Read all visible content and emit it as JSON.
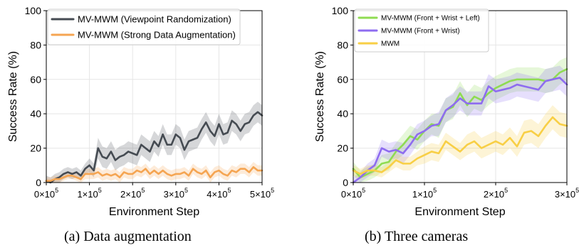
{
  "colors": {
    "dark_gray": "#454b52",
    "orange": "#f5a552",
    "green": "#8fdc52",
    "purple": "#8e6cf0",
    "yellow": "#f8cf45"
  },
  "captions": {
    "a": "(a) Data augmentation",
    "b": "(b) Three cameras"
  },
  "chart_data": [
    {
      "type": "line",
      "title": "",
      "xlabel": "Environment Step",
      "ylabel": "Success Rate (%)",
      "xlim": [
        0,
        500000
      ],
      "ylim": [
        0,
        100
      ],
      "xticks": [
        0,
        100000,
        200000,
        300000,
        400000,
        500000
      ],
      "xtick_labels": [
        {
          "base": "0×10",
          "exp": "5"
        },
        {
          "base": "1×10",
          "exp": "5"
        },
        {
          "base": "2×10",
          "exp": "5"
        },
        {
          "base": "3×10",
          "exp": "5"
        },
        {
          "base": "4×10",
          "exp": "5"
        },
        {
          "base": "5×10",
          "exp": "5"
        }
      ],
      "yticks": [
        "0",
        "20",
        "40",
        "60",
        "80",
        "100"
      ],
      "grid": true,
      "legend": "top-left",
      "series": [
        {
          "name": "MV-MWM (Viewpoint Randomization)",
          "color": "#454b52",
          "x": [
            0,
            10000,
            20000,
            30000,
            40000,
            50000,
            60000,
            70000,
            80000,
            90000,
            100000,
            110000,
            120000,
            130000,
            140000,
            150000,
            160000,
            170000,
            180000,
            190000,
            200000,
            210000,
            220000,
            230000,
            240000,
            250000,
            260000,
            270000,
            280000,
            290000,
            300000,
            310000,
            320000,
            330000,
            340000,
            350000,
            360000,
            370000,
            380000,
            390000,
            400000,
            410000,
            420000,
            430000,
            440000,
            450000,
            460000,
            470000,
            480000,
            490000,
            500000
          ],
          "y": [
            1,
            0,
            2,
            3,
            5,
            6,
            5,
            6,
            4,
            8,
            10,
            7,
            20,
            15,
            14,
            18,
            13,
            15,
            16,
            18,
            17,
            16,
            22,
            20,
            18,
            24,
            21,
            28,
            22,
            22,
            28,
            26,
            19,
            24,
            25,
            26,
            31,
            35,
            30,
            27,
            34,
            28,
            29,
            36,
            34,
            30,
            34,
            35,
            39,
            41,
            39
          ],
          "band": [
            3,
            3,
            3,
            3,
            3,
            3,
            3,
            3,
            3,
            3,
            4,
            4,
            6,
            6,
            6,
            6,
            6,
            6,
            6,
            6,
            6,
            6,
            6,
            6,
            6,
            6,
            6,
            6,
            6,
            6,
            6,
            6,
            6,
            6,
            6,
            6,
            6,
            6,
            6,
            6,
            6,
            6,
            6,
            6,
            6,
            6,
            6,
            6,
            6,
            6,
            6
          ]
        },
        {
          "name": "MV-MWM (Strong Data Augmentation)",
          "color": "#f5a552",
          "x": [
            0,
            10000,
            20000,
            30000,
            40000,
            50000,
            60000,
            70000,
            80000,
            90000,
            100000,
            110000,
            120000,
            130000,
            140000,
            150000,
            160000,
            170000,
            180000,
            190000,
            200000,
            210000,
            220000,
            230000,
            240000,
            250000,
            260000,
            270000,
            280000,
            290000,
            300000,
            310000,
            320000,
            330000,
            340000,
            350000,
            360000,
            370000,
            380000,
            390000,
            400000,
            410000,
            420000,
            430000,
            440000,
            450000,
            460000,
            470000,
            480000,
            490000,
            500000
          ],
          "y": [
            1,
            1,
            2,
            2,
            3,
            4,
            4,
            3,
            2,
            5,
            5,
            5,
            6,
            4,
            5,
            4,
            5,
            3,
            6,
            5,
            5,
            7,
            6,
            8,
            5,
            7,
            5,
            7,
            5,
            4,
            5,
            5,
            6,
            4,
            8,
            6,
            5,
            7,
            3,
            6,
            7,
            5,
            4,
            7,
            6,
            8,
            8,
            6,
            9,
            7,
            7
          ],
          "band": [
            2,
            2,
            2,
            2,
            2,
            2,
            2,
            2,
            3,
            3,
            3,
            3,
            3,
            3,
            3,
            3,
            3,
            3,
            3,
            3,
            3,
            3,
            3,
            3,
            3,
            3,
            3,
            3,
            3,
            3,
            3,
            3,
            3,
            3,
            3,
            3,
            3,
            3,
            3,
            3,
            3,
            3,
            3,
            3,
            3,
            3,
            3,
            3,
            3,
            3,
            3
          ]
        }
      ]
    },
    {
      "type": "line",
      "title": "",
      "xlabel": "Environment Step",
      "ylabel": "Success Rate (%)",
      "xlim": [
        0,
        300000
      ],
      "ylim": [
        0,
        100
      ],
      "xticks": [
        0,
        100000,
        200000,
        300000
      ],
      "xtick_labels": [
        {
          "base": "0×10",
          "exp": "5"
        },
        {
          "base": "1×10",
          "exp": "5"
        },
        {
          "base": "2×10",
          "exp": "5"
        },
        {
          "base": "3×10",
          "exp": "5"
        }
      ],
      "yticks": [
        "0",
        "20",
        "40",
        "60",
        "80",
        "100"
      ],
      "grid": true,
      "legend": "top-left",
      "series": [
        {
          "name": "MV-MWM (Front + Wrist + Left)",
          "color": "#8fdc52",
          "x": [
            0,
            10000,
            20000,
            30000,
            40000,
            50000,
            60000,
            70000,
            80000,
            90000,
            100000,
            110000,
            120000,
            130000,
            140000,
            150000,
            160000,
            170000,
            180000,
            190000,
            200000,
            210000,
            220000,
            230000,
            240000,
            250000,
            260000,
            270000,
            280000,
            290000,
            300000
          ],
          "y": [
            8,
            3,
            5,
            7,
            11,
            12,
            18,
            22,
            27,
            25,
            30,
            34,
            33,
            42,
            44,
            52,
            45,
            50,
            48,
            52,
            55,
            57,
            59,
            60,
            60,
            60,
            60,
            59,
            60,
            64,
            66
          ],
          "band": [
            4,
            4,
            4,
            4,
            5,
            5,
            5,
            6,
            6,
            6,
            6,
            6,
            7,
            7,
            7,
            7,
            7,
            7,
            7,
            7,
            7,
            7,
            7,
            7,
            7,
            7,
            7,
            7,
            7,
            7,
            7
          ]
        },
        {
          "name": "MV-MWM (Front + Wrist)",
          "color": "#8e6cf0",
          "x": [
            0,
            10000,
            20000,
            30000,
            40000,
            50000,
            60000,
            70000,
            80000,
            90000,
            100000,
            110000,
            120000,
            130000,
            140000,
            150000,
            160000,
            170000,
            180000,
            190000,
            200000,
            210000,
            220000,
            230000,
            240000,
            250000,
            260000,
            270000,
            280000,
            290000,
            300000
          ],
          "y": [
            0,
            3,
            7,
            10,
            20,
            18,
            19,
            17,
            22,
            28,
            30,
            33,
            34,
            42,
            45,
            49,
            46,
            46,
            46,
            56,
            53,
            54,
            55,
            57,
            56,
            55,
            54,
            59,
            60,
            61,
            57
          ],
          "band": [
            3,
            3,
            4,
            4,
            5,
            5,
            5,
            6,
            6,
            6,
            6,
            6,
            7,
            7,
            7,
            7,
            7,
            7,
            7,
            7,
            7,
            7,
            7,
            7,
            7,
            7,
            7,
            7,
            7,
            7,
            7
          ]
        },
        {
          "name": "MWM",
          "color": "#f8cf45",
          "x": [
            0,
            10000,
            20000,
            30000,
            40000,
            50000,
            60000,
            70000,
            80000,
            90000,
            100000,
            110000,
            120000,
            130000,
            140000,
            150000,
            160000,
            170000,
            180000,
            190000,
            200000,
            210000,
            220000,
            230000,
            240000,
            250000,
            260000,
            270000,
            280000,
            290000,
            300000
          ],
          "y": [
            7,
            5,
            7,
            7,
            6,
            9,
            13,
            11,
            11,
            14,
            16,
            18,
            17,
            24,
            21,
            18,
            22,
            24,
            20,
            22,
            24,
            22,
            26,
            21,
            29,
            30,
            27,
            33,
            38,
            34,
            33
          ],
          "band": [
            3,
            3,
            3,
            3,
            3,
            3,
            4,
            4,
            4,
            4,
            5,
            5,
            5,
            5,
            5,
            5,
            6,
            6,
            6,
            6,
            6,
            6,
            6,
            6,
            7,
            7,
            7,
            7,
            7,
            7,
            7
          ]
        }
      ]
    }
  ]
}
